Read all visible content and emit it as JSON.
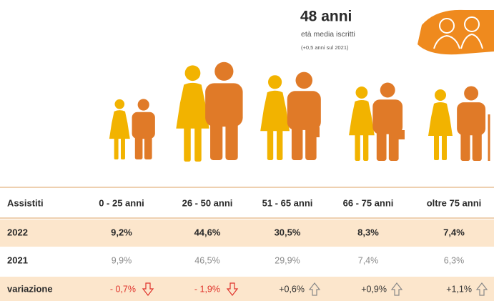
{
  "header": {
    "title": "48 anni",
    "subtitle": "età media iscritti",
    "note": "(+0,5 anni sul 2021)"
  },
  "table": {
    "columns": [
      "Assistiti",
      "0 - 25 anni",
      "26 - 50 anni",
      "51 - 65 anni",
      "66 - 75 anni",
      "oltre 75 anni"
    ],
    "rows": [
      [
        "2022",
        "9,2%",
        "44,6%",
        "30,5%",
        "8,3%",
        "7,4%"
      ],
      [
        "2021",
        "9,9%",
        "46,5%",
        "29,9%",
        "7,4%",
        "6,3%"
      ],
      [
        "variazione",
        "- 0,7%",
        "- 1,9%",
        "+0,6%",
        "+0,9%",
        "+1,1%"
      ]
    ]
  }
}
